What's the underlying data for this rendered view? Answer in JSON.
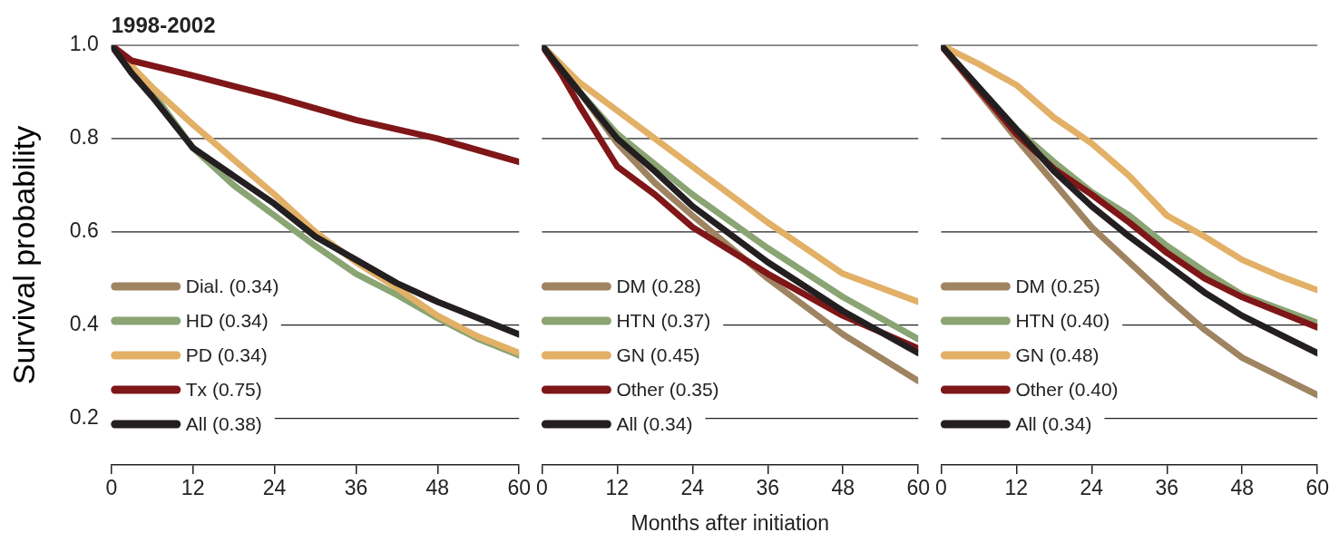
{
  "chart_data": [
    {
      "type": "line",
      "title": "1998-2002",
      "ylabel": "Survival probability",
      "xlim": [
        0,
        60
      ],
      "xticks": [
        0,
        12,
        24,
        36,
        48,
        60
      ],
      "ylim": [
        0.1,
        1.0
      ],
      "yticks": [
        0.2,
        0.4,
        0.6,
        0.8,
        {
          "value": 1.0,
          "label": "1.0"
        }
      ],
      "grid": "y",
      "legend": "bottom left",
      "series": [
        {
          "name": "Dial. (0.34)",
          "color": "#a08462"
        },
        {
          "name": "HD (0.34)",
          "color": "#8aa474",
          "x": [
            0,
            6,
            12,
            18,
            24,
            30,
            36,
            42,
            48,
            54,
            60
          ],
          "values": [
            1.0,
            0.9,
            0.78,
            0.7,
            0.635,
            0.57,
            0.51,
            0.465,
            0.415,
            0.37,
            0.335
          ]
        },
        {
          "name": "PD (0.34)",
          "color": "#e2b066",
          "x": [
            0,
            6,
            12,
            18,
            24,
            30,
            36,
            42,
            48,
            54,
            60
          ],
          "values": [
            1.0,
            0.91,
            0.83,
            0.755,
            0.68,
            0.6,
            0.535,
            0.48,
            0.42,
            0.375,
            0.34
          ]
        },
        {
          "name": "Tx (0.75)",
          "color": "#7f1618",
          "x": [
            0,
            3,
            12,
            24,
            36,
            48,
            60
          ],
          "values": [
            1.0,
            0.967,
            0.935,
            0.89,
            0.84,
            0.8,
            0.75
          ]
        },
        {
          "name": "All (0.38)",
          "color": "#231f20",
          "x": [
            0,
            3,
            6,
            12,
            18,
            24,
            30,
            36,
            42,
            48,
            54,
            60
          ],
          "values": [
            1.0,
            0.94,
            0.89,
            0.78,
            0.72,
            0.66,
            0.59,
            0.54,
            0.49,
            0.45,
            0.415,
            0.38
          ]
        }
      ]
    },
    {
      "type": "line",
      "xlabel": "Months after initiation",
      "xlim": [
        0,
        60
      ],
      "xticks": [
        0,
        12,
        24,
        36,
        48,
        60
      ],
      "ylim": [
        0.1,
        1.0
      ],
      "yticks": [
        0.2,
        0.4,
        0.6,
        0.8,
        1
      ],
      "grid": "y",
      "legend": "bottom left",
      "tick_labels": "x",
      "series": [
        {
          "name": "DM (0.28)",
          "color": "#a08462",
          "x": [
            0,
            6,
            12,
            18,
            24,
            36,
            48,
            60
          ],
          "values": [
            1.0,
            0.9,
            0.79,
            0.705,
            0.635,
            0.5,
            0.38,
            0.28
          ]
        },
        {
          "name": "HTN (0.37)",
          "color": "#8aa474",
          "x": [
            0,
            6,
            12,
            24,
            36,
            48,
            60
          ],
          "values": [
            1.0,
            0.9,
            0.81,
            0.68,
            0.565,
            0.46,
            0.37
          ]
        },
        {
          "name": "GN (0.45)",
          "color": "#e2b066",
          "x": [
            0,
            6,
            12,
            18,
            24,
            36,
            48,
            60
          ],
          "values": [
            1.0,
            0.92,
            0.86,
            0.8,
            0.74,
            0.62,
            0.51,
            0.45
          ]
        },
        {
          "name": "Other (0.35)",
          "color": "#7f1618",
          "x": [
            0,
            3,
            6,
            12,
            18,
            24,
            36,
            48,
            60
          ],
          "values": [
            1.0,
            0.94,
            0.87,
            0.74,
            0.68,
            0.61,
            0.51,
            0.42,
            0.35
          ]
        },
        {
          "name": "All (0.34)",
          "color": "#231f20",
          "x": [
            0,
            6,
            12,
            18,
            24,
            36,
            48,
            60
          ],
          "values": [
            1.0,
            0.9,
            0.8,
            0.73,
            0.655,
            0.535,
            0.43,
            0.34
          ]
        }
      ]
    },
    {
      "type": "line",
      "xlim": [
        0,
        60
      ],
      "xticks": [
        0,
        12,
        24,
        36,
        48,
        60
      ],
      "ylim": [
        0.1,
        1.0
      ],
      "yticks": [
        0.2,
        0.4,
        0.6,
        0.8,
        1
      ],
      "grid": "y",
      "legend": "bottom left",
      "tick_labels": "x",
      "series": [
        {
          "name": "DM (0.25)",
          "color": "#a08462",
          "x": [
            0,
            12,
            18,
            24,
            30,
            36,
            42,
            48,
            60
          ],
          "values": [
            1.0,
            0.8,
            0.705,
            0.61,
            0.535,
            0.46,
            0.39,
            0.33,
            0.25
          ]
        },
        {
          "name": "HTN (0.40)",
          "color": "#8aa474",
          "x": [
            0,
            12,
            18,
            24,
            30,
            36,
            42,
            48,
            60
          ],
          "values": [
            1.0,
            0.82,
            0.75,
            0.685,
            0.635,
            0.57,
            0.515,
            0.465,
            0.405
          ]
        },
        {
          "name": "GN (0.48)",
          "color": "#e2b066",
          "x": [
            0,
            6,
            12,
            18,
            24,
            30,
            36,
            42,
            48,
            54,
            60
          ],
          "values": [
            1.0,
            0.96,
            0.915,
            0.845,
            0.79,
            0.72,
            0.635,
            0.59,
            0.54,
            0.505,
            0.475
          ]
        },
        {
          "name": "Other (0.40)",
          "color": "#7f1618",
          "x": [
            0,
            12,
            18,
            24,
            30,
            36,
            42,
            48,
            60
          ],
          "values": [
            1.0,
            0.81,
            0.735,
            0.68,
            0.62,
            0.555,
            0.5,
            0.46,
            0.395
          ]
        },
        {
          "name": "All (0.34)",
          "color": "#231f20",
          "x": [
            0,
            12,
            18,
            24,
            30,
            36,
            42,
            48,
            60
          ],
          "values": [
            1.0,
            0.82,
            0.73,
            0.655,
            0.59,
            0.53,
            0.47,
            0.42,
            0.34
          ]
        }
      ]
    }
  ]
}
